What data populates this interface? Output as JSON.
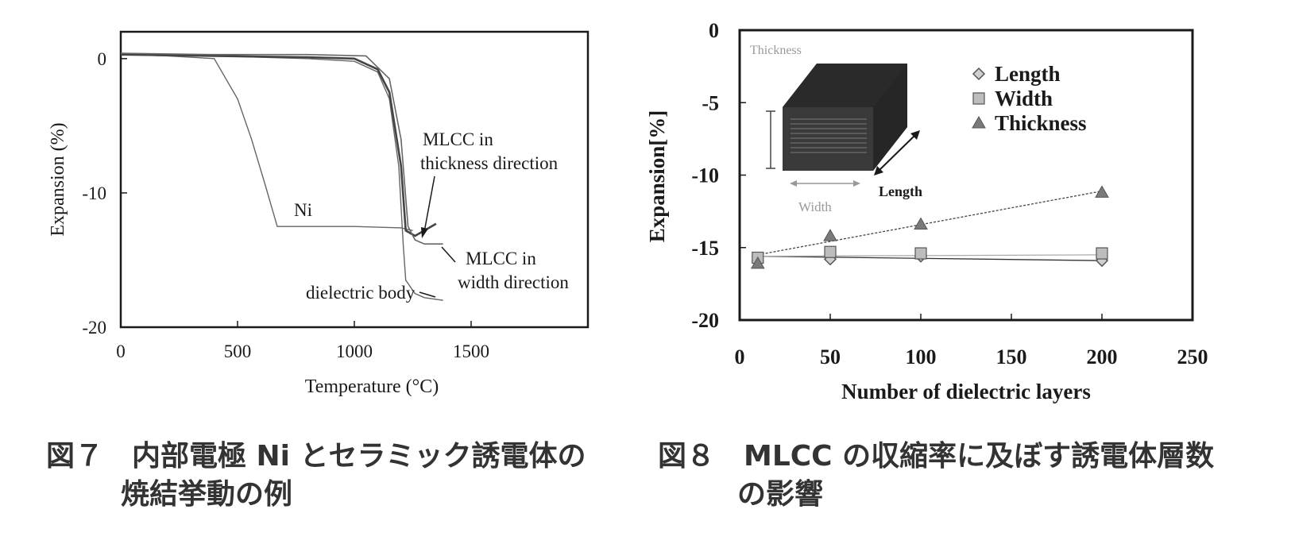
{
  "chart_data": [
    {
      "type": "line",
      "xlabel": "Temperature (°C)",
      "ylabel": "Expansion (%)",
      "xlim": [
        0,
        2000
      ],
      "ylim": [
        -20,
        2
      ],
      "x_ticks": [
        0,
        500,
        1000,
        1500
      ],
      "y_ticks": [
        0,
        -10,
        -20
      ],
      "x_tick_labels": [
        "0",
        "500",
        "1000",
        "1500"
      ],
      "y_tick_labels": [
        "0",
        "-10",
        "-20"
      ],
      "grid": false,
      "series": [
        {
          "name": "Ni",
          "x": [
            0,
            200,
            400,
            500,
            560,
            620,
            670,
            1000,
            1200,
            1250
          ],
          "y": [
            0.3,
            0.2,
            0.0,
            -3.0,
            -6.0,
            -9.5,
            -12.5,
            -12.5,
            -12.6,
            -12.8
          ]
        },
        {
          "name": "dielectric body",
          "x": [
            0,
            400,
            800,
            1000,
            1100,
            1150,
            1190,
            1200,
            1210,
            1220,
            1260,
            1300,
            1380
          ],
          "y": [
            0.3,
            0.2,
            0.0,
            -0.2,
            -1.0,
            -3.0,
            -8.0,
            -11.0,
            -14.0,
            -16.5,
            -17.5,
            -17.8,
            -18.0
          ]
        },
        {
          "name": "MLCC in thickness direction",
          "x": [
            0,
            400,
            800,
            1000,
            1100,
            1150,
            1200,
            1220,
            1260,
            1300,
            1350
          ],
          "y": [
            0.3,
            0.2,
            0.1,
            0.0,
            -0.8,
            -2.5,
            -8.0,
            -12.8,
            -13.2,
            -12.8,
            -12.3
          ]
        },
        {
          "name": "MLCC in width direction",
          "x": [
            0,
            400,
            800,
            1050,
            1150,
            1200,
            1230,
            1260,
            1300,
            1380
          ],
          "y": [
            0.4,
            0.3,
            0.3,
            0.2,
            -1.5,
            -6.0,
            -12.5,
            -13.5,
            -13.8,
            -13.8
          ]
        }
      ],
      "annotations": [
        {
          "text": "Ni"
        },
        {
          "text": "MLCC in"
        },
        {
          "text": "thickness direction"
        },
        {
          "text": "MLCC in"
        },
        {
          "text": "width direction"
        },
        {
          "text": "dielectric body"
        }
      ],
      "caption": [
        "図７　内部電極 Ni とセラミック誘電体の",
        "焼結挙動の例"
      ]
    },
    {
      "type": "scatter",
      "xlabel": "Number of dielectric layers",
      "ylabel": "Expansion[%]",
      "xlim": [
        0,
        250
      ],
      "ylim": [
        -20,
        0
      ],
      "x_ticks": [
        0,
        50,
        100,
        150,
        200,
        250
      ],
      "y_ticks": [
        0,
        -5,
        -10,
        -15,
        -20
      ],
      "x_tick_labels": [
        "0",
        "50",
        "100",
        "150",
        "200",
        "250"
      ],
      "y_tick_labels": [
        "0",
        "-5",
        "-10",
        "-15",
        "-20"
      ],
      "grid": false,
      "legend": "top-right",
      "series": [
        {
          "name": "Length",
          "marker": "diamond",
          "x": [
            10,
            50,
            100,
            200
          ],
          "y": [
            -15.9,
            -15.8,
            -15.6,
            -15.9
          ]
        },
        {
          "name": "Width",
          "marker": "square",
          "x": [
            10,
            50,
            100,
            200
          ],
          "y": [
            -15.7,
            -15.3,
            -15.4,
            -15.4
          ]
        },
        {
          "name": "Thickness",
          "marker": "triangle",
          "x": [
            10,
            50,
            100,
            200
          ],
          "y": [
            -16.1,
            -14.2,
            -13.4,
            -11.2
          ]
        }
      ],
      "trendlines": [
        {
          "series": "Thickness",
          "x": [
            10,
            200
          ],
          "y": [
            -15.5,
            -11.1
          ]
        },
        {
          "series": "Length",
          "x": [
            10,
            200
          ],
          "y": [
            -15.6,
            -15.9
          ]
        },
        {
          "series": "Width",
          "x": [
            10,
            200
          ],
          "y": [
            -15.6,
            -15.5
          ]
        }
      ],
      "inset_labels": {
        "thickness": "Thickness",
        "width": "Width",
        "length": "Length"
      },
      "caption": [
        "図８　MLCC の収縮率に及ぼす誘電体層数",
        "の影響"
      ]
    }
  ],
  "colors": {
    "axis": "#1a1a1a",
    "curve": "#555555",
    "marker_fill": "#9a9a9a",
    "block": "#3a3a3a",
    "inset_label": "#9a9a9a"
  }
}
